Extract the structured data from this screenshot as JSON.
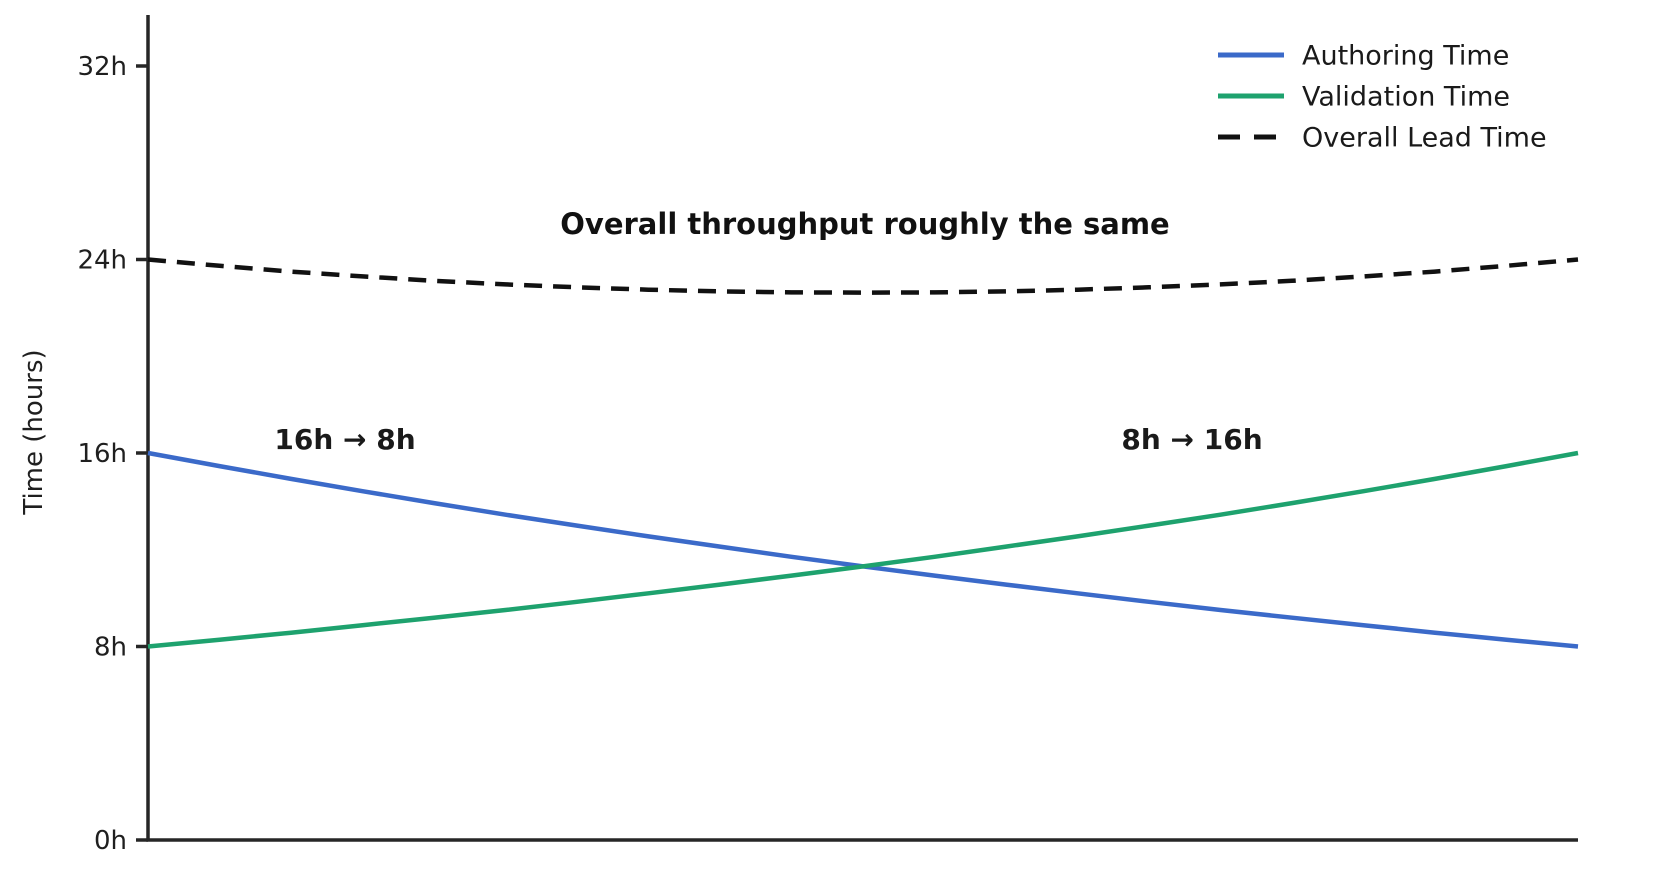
{
  "figure": {
    "background": "#ffffff",
    "axis_color": "#262626",
    "annotations": {
      "throughput": {
        "text": "Overall throughput roughly the same",
        "color": "#111111"
      },
      "authoring_shift": {
        "text": "16h → 8h",
        "color": "#3b6ac9"
      },
      "validation_shift": {
        "text": "8h → 16h",
        "color": "#1ea26e"
      }
    },
    "legend": {
      "position": "upper right",
      "items": [
        {
          "label": "Authoring Time",
          "color": "#3b6ac9",
          "dashed": false
        },
        {
          "label": "Validation Time",
          "color": "#1ea26e",
          "dashed": false
        },
        {
          "label": "Overall Lead Time",
          "color": "#111111",
          "dashed": true
        }
      ]
    }
  },
  "chart_data": {
    "type": "line",
    "title": "",
    "xlabel": "",
    "ylabel": "Time (hours)",
    "grid": false,
    "legend_position": "upper right",
    "x_axis": {
      "range": [
        0,
        1
      ],
      "ticks": []
    },
    "y_axis": {
      "range": [
        0,
        34.1
      ],
      "ticks": [
        "0h",
        "8h",
        "16h",
        "24h",
        "32h"
      ],
      "tick_values": [
        0,
        8,
        16,
        24,
        32
      ]
    },
    "x": [
      0,
      0.05,
      0.1,
      0.15,
      0.2,
      0.25,
      0.3,
      0.35,
      0.4,
      0.45,
      0.5,
      0.55,
      0.6,
      0.65,
      0.7,
      0.75,
      0.8,
      0.85,
      0.9,
      0.95,
      1
    ],
    "series": [
      {
        "name": "Authoring Time",
        "color": "#3b6ac9",
        "style": "solid",
        "start_label": "16h",
        "end_label": "8h",
        "values": [
          16,
          15.46,
          14.93,
          14.42,
          13.93,
          13.45,
          13,
          12.55,
          12.13,
          11.71,
          11.31,
          10.93,
          10.56,
          10.2,
          9.85,
          9.51,
          9.19,
          8.88,
          8.57,
          8.28,
          8
        ]
      },
      {
        "name": "Validation Time",
        "color": "#1ea26e",
        "style": "solid",
        "start_label": "8h",
        "end_label": "16h",
        "values": [
          8,
          8.28,
          8.57,
          8.88,
          9.19,
          9.51,
          9.85,
          10.2,
          10.56,
          10.93,
          11.31,
          11.71,
          12.13,
          12.55,
          13,
          13.45,
          13.93,
          14.42,
          14.93,
          15.46,
          16
        ]
      },
      {
        "name": "Overall Lead Time",
        "color": "#111111",
        "style": "dashed",
        "start_label": "24h",
        "end_label": "24h",
        "values": [
          24,
          23.74,
          23.5,
          23.3,
          23.12,
          22.97,
          22.85,
          22.75,
          22.68,
          22.64,
          22.63,
          22.64,
          22.68,
          22.75,
          22.85,
          22.97,
          23.12,
          23.3,
          23.5,
          23.74,
          24
        ]
      }
    ]
  }
}
